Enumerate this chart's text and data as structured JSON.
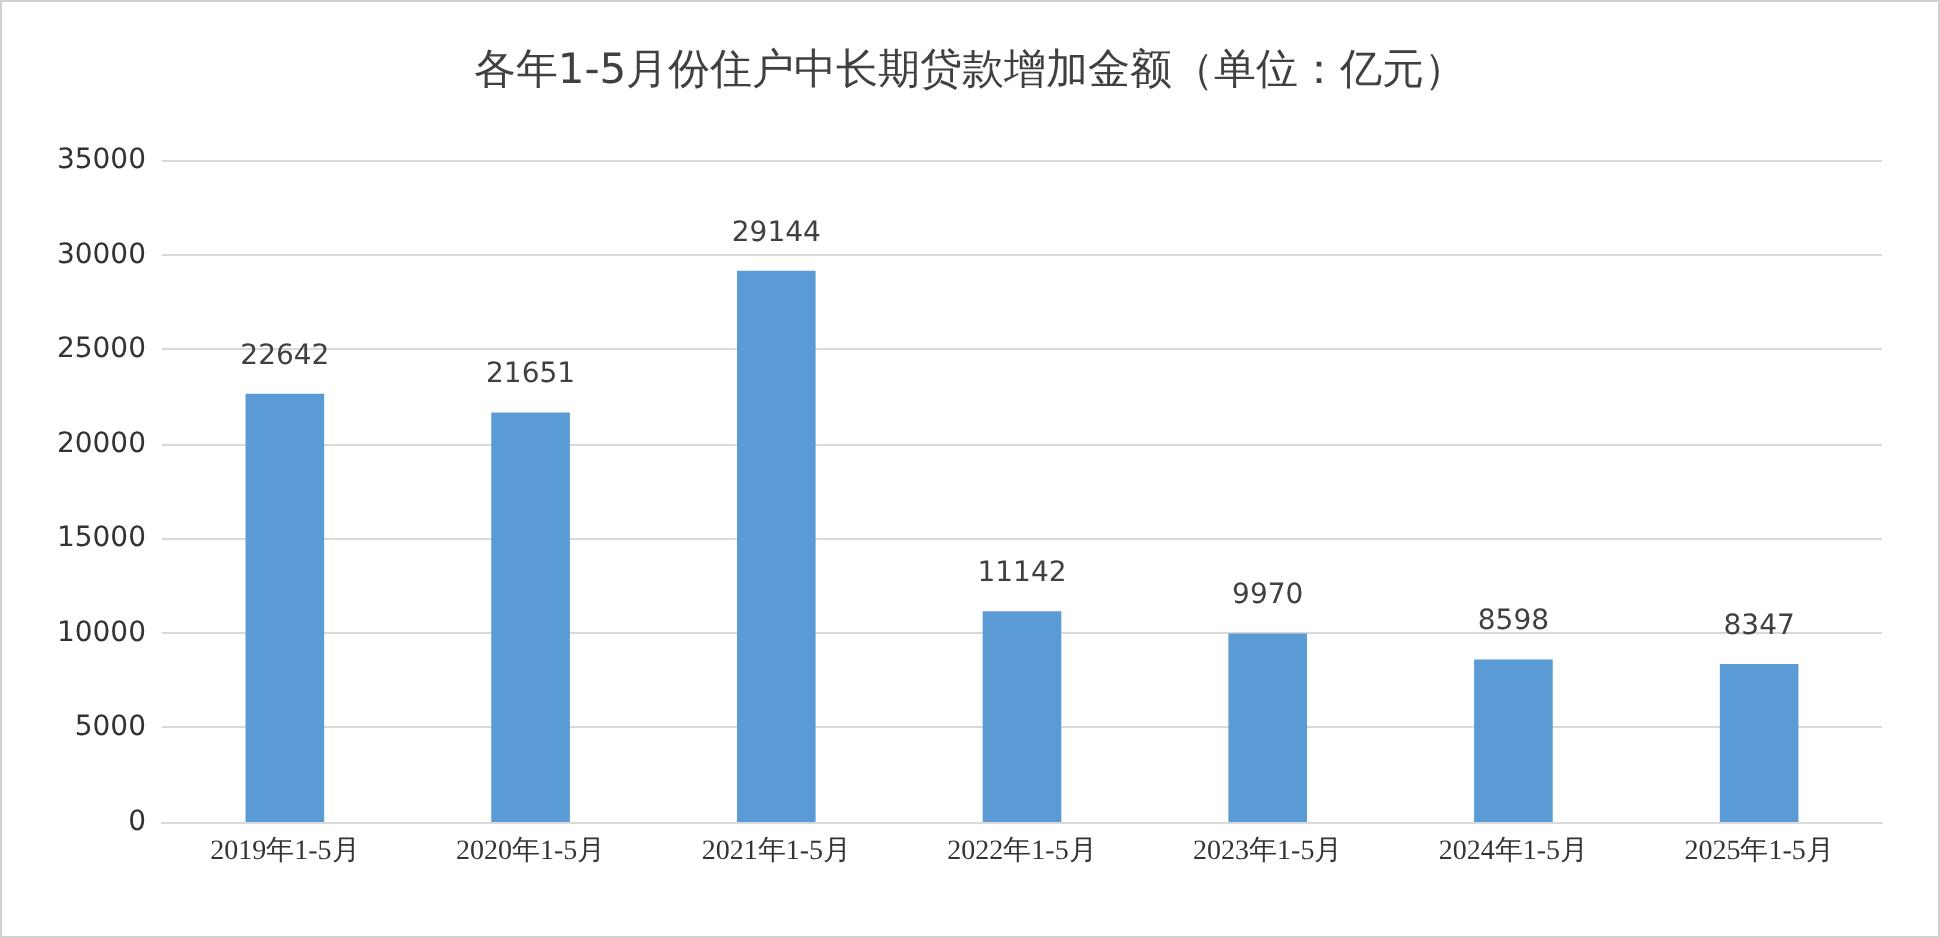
{
  "chart_data": {
    "type": "bar",
    "title": "各年1-5月份住户中长期贷款增加金额（单位：亿元）",
    "categories": [
      "2019年1-5月",
      "2020年1-5月",
      "2021年1-5月",
      "2022年1-5月",
      "2023年1-5月",
      "2024年1-5月",
      "2025年1-5月"
    ],
    "values": [
      22642,
      21651,
      29144,
      11142,
      9970,
      8598,
      8347
    ],
    "color": "#5b9bd5",
    "ylim": [
      0,
      35000
    ],
    "yticks": [
      0,
      5000,
      10000,
      15000,
      20000,
      25000,
      30000,
      35000
    ],
    "grid": "y",
    "data_labels": true
  }
}
